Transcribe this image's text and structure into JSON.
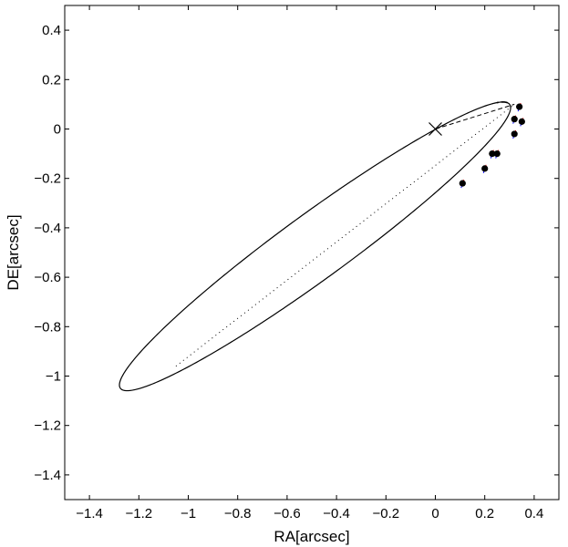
{
  "chart_data": {
    "type": "scatter",
    "title": "",
    "xlabel": "RA[arcsec]",
    "ylabel": "DE[arcsec]",
    "xlim": [
      -1.5,
      0.5
    ],
    "ylim": [
      -1.5,
      0.5
    ],
    "x_ticks": [
      -1.4,
      -1.2,
      -1.0,
      -0.8,
      -0.6,
      -0.4,
      -0.2,
      0,
      0.2,
      0.4
    ],
    "x_tick_labels": [
      "−1.4",
      "−1.2",
      "−1",
      "−0.8",
      "−0.6",
      "−0.4",
      "−0.2",
      "0",
      "0.2",
      "0.4"
    ],
    "y_ticks": [
      0.4,
      0.2,
      0,
      -0.2,
      -0.4,
      -0.6,
      -0.8,
      -1.0,
      -1.2,
      -1.4
    ],
    "y_tick_labels": [
      "0.4",
      "0.2",
      "0",
      "−0.2",
      "−0.4",
      "−0.6",
      "−0.8",
      "−1",
      "−1.2",
      "−1.4"
    ],
    "grid": false,
    "center_marker": {
      "x": 0,
      "y": 0,
      "symbol": "x"
    },
    "orbit_ellipse": {
      "center": [
        -0.487,
        -0.475
      ],
      "semi_major": 0.975,
      "semi_minor": 0.132,
      "angle_deg": 36.1
    },
    "observations": {
      "x": [
        0.34,
        0.35,
        0.32,
        0.32,
        0.25,
        0.23,
        0.2,
        0.11
      ],
      "y": [
        0.09,
        0.03,
        0.04,
        -0.02,
        -0.1,
        -0.1,
        -0.16,
        -0.22
      ]
    },
    "line_of_nodes": [
      [
        -1.05,
        -0.96
      ],
      [
        0.32,
        0.1
      ]
    ],
    "periastron_line": [
      [
        0.0,
        0.0
      ],
      [
        0.32,
        0.1
      ]
    ],
    "colors": {
      "orbit": "#000000",
      "observation": "#000000",
      "residual_primary": "#0000ff",
      "residual_secondary": "#ff0000"
    }
  }
}
